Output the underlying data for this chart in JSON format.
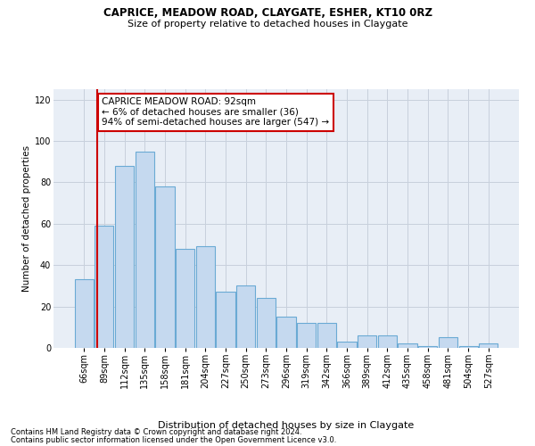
{
  "title1": "CAPRICE, MEADOW ROAD, CLAYGATE, ESHER, KT10 0RZ",
  "title2": "Size of property relative to detached houses in Claygate",
  "xlabel": "Distribution of detached houses by size in Claygate",
  "ylabel": "Number of detached properties",
  "bar_values": [
    33,
    59,
    88,
    95,
    78,
    48,
    49,
    27,
    30,
    24,
    15,
    12,
    12,
    3,
    6,
    6,
    2,
    1,
    5,
    1,
    2
  ],
  "bar_labels": [
    "66sqm",
    "89sqm",
    "112sqm",
    "135sqm",
    "158sqm",
    "181sqm",
    "204sqm",
    "227sqm",
    "250sqm",
    "273sqm",
    "296sqm",
    "319sqm",
    "342sqm",
    "366sqm",
    "389sqm",
    "412sqm",
    "435sqm",
    "458sqm",
    "481sqm",
    "504sqm",
    "527sqm"
  ],
  "bar_color": "#c5d9ef",
  "bar_edge_color": "#6aaad4",
  "annotation_line_color": "#cc0000",
  "annotation_box_text": "CAPRICE MEADOW ROAD: 92sqm\n← 6% of detached houses are smaller (36)\n94% of semi-detached houses are larger (547) →",
  "annotation_box_facecolor": "white",
  "annotation_box_edgecolor": "#cc0000",
  "ylim_max": 125,
  "yticks": [
    0,
    20,
    40,
    60,
    80,
    100,
    120
  ],
  "bg_color": "#e8eef6",
  "grid_color": "#c8d0dc",
  "footer1": "Contains HM Land Registry data © Crown copyright and database right 2024.",
  "footer2": "Contains public sector information licensed under the Open Government Licence v3.0.",
  "title1_fontsize": 8.5,
  "title2_fontsize": 8.0,
  "ylabel_fontsize": 7.5,
  "xlabel_fontsize": 8.0,
  "tick_fontsize": 7.0,
  "footer_fontsize": 6.0,
  "ann_fontsize": 7.5
}
